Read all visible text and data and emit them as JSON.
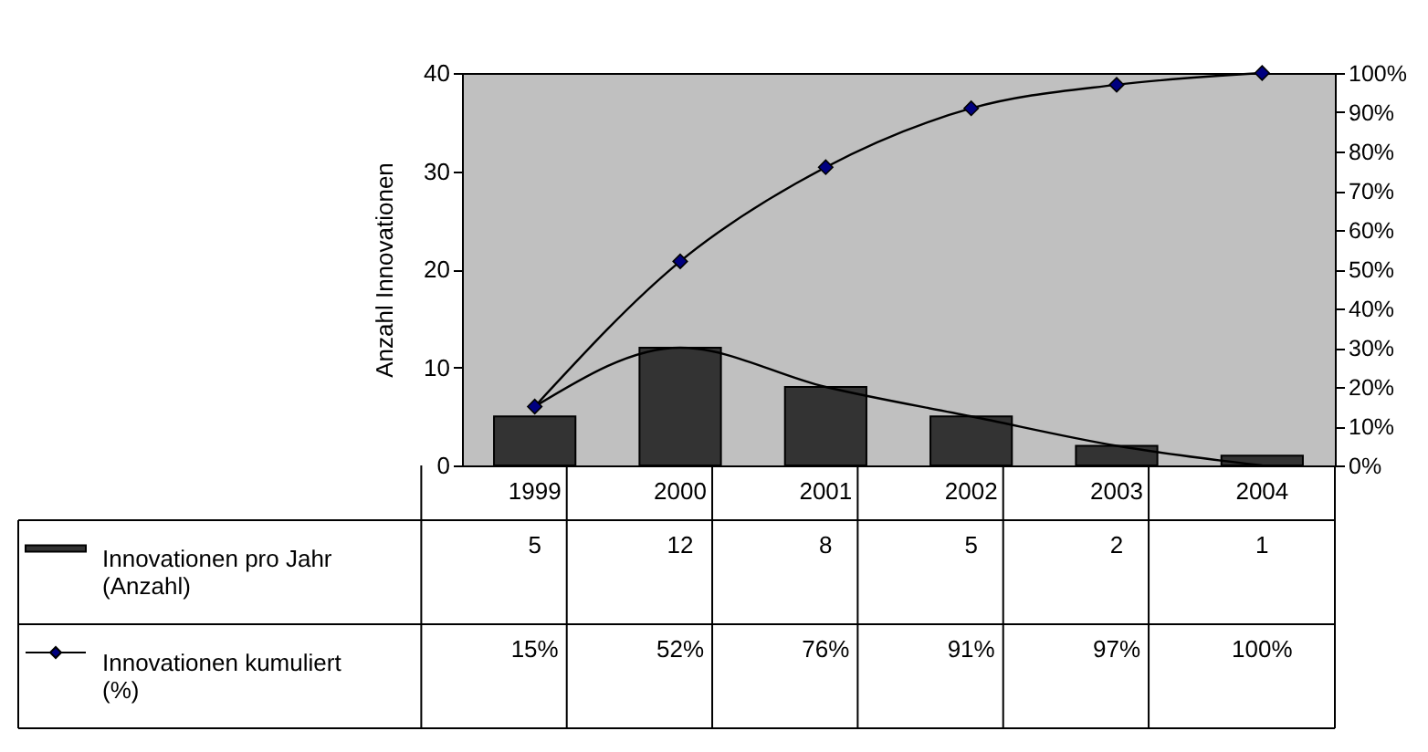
{
  "chart_data": {
    "type": "bar",
    "ylabel": "Anzahl Innovationen",
    "categories": [
      "1999",
      "2000",
      "2001",
      "2002",
      "2003",
      "2004"
    ],
    "series": [
      {
        "name": "Innovationen pro Jahr (Anzahl)",
        "type": "bar",
        "color": "#333333",
        "values": [
          5,
          12,
          8,
          5,
          2,
          1
        ],
        "value_labels": [
          "5",
          "12",
          "8",
          "5",
          "2",
          "1"
        ]
      },
      {
        "name": "Innovationen kumuliert (%)",
        "type": "line",
        "axis": "y2",
        "color": "#000080",
        "marker": "diamond",
        "values": [
          15,
          52,
          76,
          91,
          97,
          100
        ],
        "value_labels": [
          "15%",
          "52%",
          "76%",
          "91%",
          "97%",
          "100%"
        ]
      },
      {
        "type": "line",
        "color": "#000000",
        "marker": "none",
        "values": [
          6,
          12,
          8,
          5,
          2,
          0
        ]
      }
    ],
    "ylim": [
      0,
      40
    ],
    "yticks": [
      0,
      10,
      20,
      30,
      40
    ],
    "y2lim": [
      0,
      100
    ],
    "y2ticks": [
      {
        "value": 0,
        "label": "0%"
      },
      {
        "value": 10,
        "label": "10%"
      },
      {
        "value": 20,
        "label": "20%"
      },
      {
        "value": 30,
        "label": "30%"
      },
      {
        "value": 40,
        "label": "40%"
      },
      {
        "value": 50,
        "label": "50%"
      },
      {
        "value": 60,
        "label": "60%"
      },
      {
        "value": 70,
        "label": "70%"
      },
      {
        "value": 80,
        "label": "80%"
      },
      {
        "value": 90,
        "label": "90%"
      },
      {
        "value": 100,
        "label": "100%"
      }
    ],
    "grid": false,
    "legend": "bottom left"
  }
}
